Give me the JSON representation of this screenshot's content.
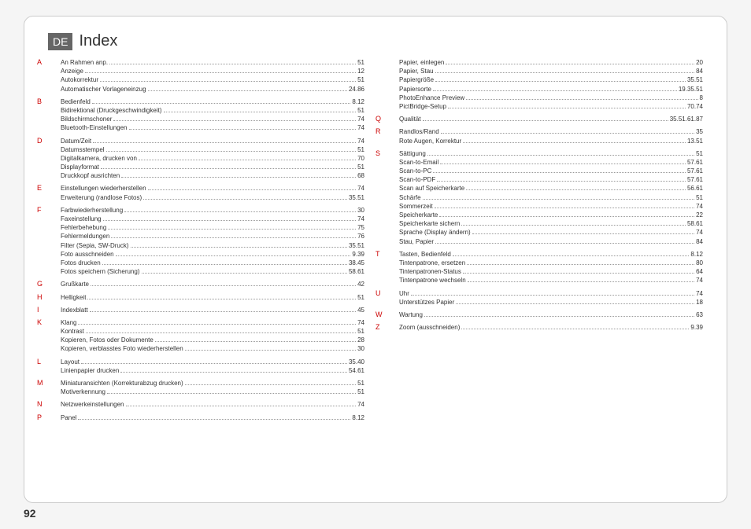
{
  "page_number": "92",
  "lang_badge": "DE",
  "title": "Index",
  "left_column": [
    {
      "letter": "A",
      "entries": [
        {
          "label": "An Rahmen anp.",
          "page": "51"
        },
        {
          "label": "Anzeige",
          "page": "12"
        },
        {
          "label": "Autokorrektur",
          "page": "51"
        },
        {
          "label": "Automatischer Vorlageneinzug",
          "page": "24.86"
        }
      ]
    },
    {
      "letter": "B",
      "entries": [
        {
          "label": "Bedienfeld",
          "page": "8.12"
        },
        {
          "label": "Bidirektional (Druckgeschwindigkeit)",
          "page": "51"
        },
        {
          "label": "Bildschirmschoner",
          "page": "74"
        },
        {
          "label": "Bluetooth-Einstellungen",
          "page": "74"
        }
      ]
    },
    {
      "letter": "D",
      "entries": [
        {
          "label": "Datum/Zeit",
          "page": "74"
        },
        {
          "label": "Datumsstempel",
          "page": "51"
        },
        {
          "label": "Digitalkamera, drucken von",
          "page": "70"
        },
        {
          "label": "Displayformat",
          "page": "51"
        },
        {
          "label": "Druckkopf ausrichten",
          "page": "68"
        }
      ]
    },
    {
      "letter": "E",
      "entries": [
        {
          "label": "Einstellungen wiederherstellen",
          "page": "74"
        },
        {
          "label": "Erweiterung (randlose Fotos)",
          "page": "35.51"
        }
      ]
    },
    {
      "letter": "F",
      "entries": [
        {
          "label": "Farbwiederherstellung",
          "page": "30"
        },
        {
          "label": "Faxeinstellung",
          "page": "74"
        },
        {
          "label": "Fehlerbehebung",
          "page": "75"
        },
        {
          "label": "Fehlermeldungen",
          "page": "76"
        },
        {
          "label": "Filter (Sepia, SW-Druck)",
          "page": "35.51"
        },
        {
          "label": "Foto ausschneiden",
          "page": "9.39"
        },
        {
          "label": "Fotos drucken",
          "page": "38.45"
        },
        {
          "label": "Fotos speichern (Sicherung)",
          "page": "58.61"
        }
      ]
    },
    {
      "letter": "G",
      "entries": [
        {
          "label": "Grußkarte",
          "page": "42"
        }
      ]
    },
    {
      "letter": "H",
      "entries": [
        {
          "label": "Helligkeit",
          "page": "51"
        }
      ]
    },
    {
      "letter": "I",
      "entries": [
        {
          "label": "Indexblatt",
          "page": "45"
        }
      ]
    },
    {
      "letter": "K",
      "entries": [
        {
          "label": "Klang",
          "page": "74"
        },
        {
          "label": "Kontrast",
          "page": "51"
        },
        {
          "label": "Kopieren, Fotos oder Dokumente",
          "page": "28"
        },
        {
          "label": "Kopieren, verblasstes Foto wiederherstellen",
          "page": "30"
        }
      ]
    },
    {
      "letter": "L",
      "entries": [
        {
          "label": "Layout",
          "page": "35.40"
        },
        {
          "label": "Linienpapier drucken",
          "page": "54.61"
        }
      ]
    },
    {
      "letter": "M",
      "entries": [
        {
          "label": "Miniaturansichten (Korrekturabzug drucken)",
          "page": "51"
        },
        {
          "label": "Motiverkennung",
          "page": "51"
        }
      ]
    },
    {
      "letter": "N",
      "entries": [
        {
          "label": "Netzwerkeinstellungen",
          "page": "74"
        }
      ]
    },
    {
      "letter": "P",
      "entries": [
        {
          "label": "Panel",
          "page": "8.12"
        }
      ]
    }
  ],
  "right_column": [
    {
      "letter": "",
      "entries": [
        {
          "label": "Papier, einlegen",
          "page": "20"
        },
        {
          "label": "Papier, Stau",
          "page": "84"
        },
        {
          "label": "Papiergröße",
          "page": "35.51"
        },
        {
          "label": "Papiersorte",
          "page": "19.35.51"
        },
        {
          "label": "PhotoEnhance Preview",
          "page": "8"
        },
        {
          "label": "PictBridge-Setup",
          "page": "70.74"
        }
      ]
    },
    {
      "letter": "Q",
      "entries": [
        {
          "label": "Qualität",
          "page": "35.51.61.87"
        }
      ]
    },
    {
      "letter": "R",
      "entries": [
        {
          "label": "Randlos/Rand",
          "page": "35"
        },
        {
          "label": "Rote Augen, Korrektur",
          "page": "13.51"
        }
      ]
    },
    {
      "letter": "S",
      "entries": [
        {
          "label": "Sättigung",
          "page": "51"
        },
        {
          "label": "Scan-to-Email",
          "page": "57.61"
        },
        {
          "label": "Scan-to-PC",
          "page": "57.61"
        },
        {
          "label": "Scan-to-PDF",
          "page": "57.61"
        },
        {
          "label": "Scan auf Speicherkarte",
          "page": "56.61"
        },
        {
          "label": "Schärfe",
          "page": "51"
        },
        {
          "label": "Sommerzeit",
          "page": "74"
        },
        {
          "label": "Speicherkarte",
          "page": "22"
        },
        {
          "label": "Speicherkarte sichern",
          "page": "58.61"
        },
        {
          "label": "Sprache (Display ändern)",
          "page": "74"
        },
        {
          "label": "Stau, Papier",
          "page": "84"
        }
      ]
    },
    {
      "letter": "T",
      "entries": [
        {
          "label": "Tasten, Bedienfeld",
          "page": "8.12"
        },
        {
          "label": "Tintenpatrone, ersetzen",
          "page": "80"
        },
        {
          "label": "Tintenpatronen-Status",
          "page": "64"
        },
        {
          "label": "Tintenpatrone wechseln",
          "page": "74"
        }
      ]
    },
    {
      "letter": "U",
      "entries": [
        {
          "label": "Uhr",
          "page": "74"
        },
        {
          "label": "Unterstützes Papier",
          "page": "18"
        }
      ]
    },
    {
      "letter": "W",
      "entries": [
        {
          "label": "Wartung",
          "page": "63"
        }
      ]
    },
    {
      "letter": "Z",
      "entries": [
        {
          "label": "Zoom (ausschneiden)",
          "page": "9.39"
        }
      ]
    }
  ]
}
